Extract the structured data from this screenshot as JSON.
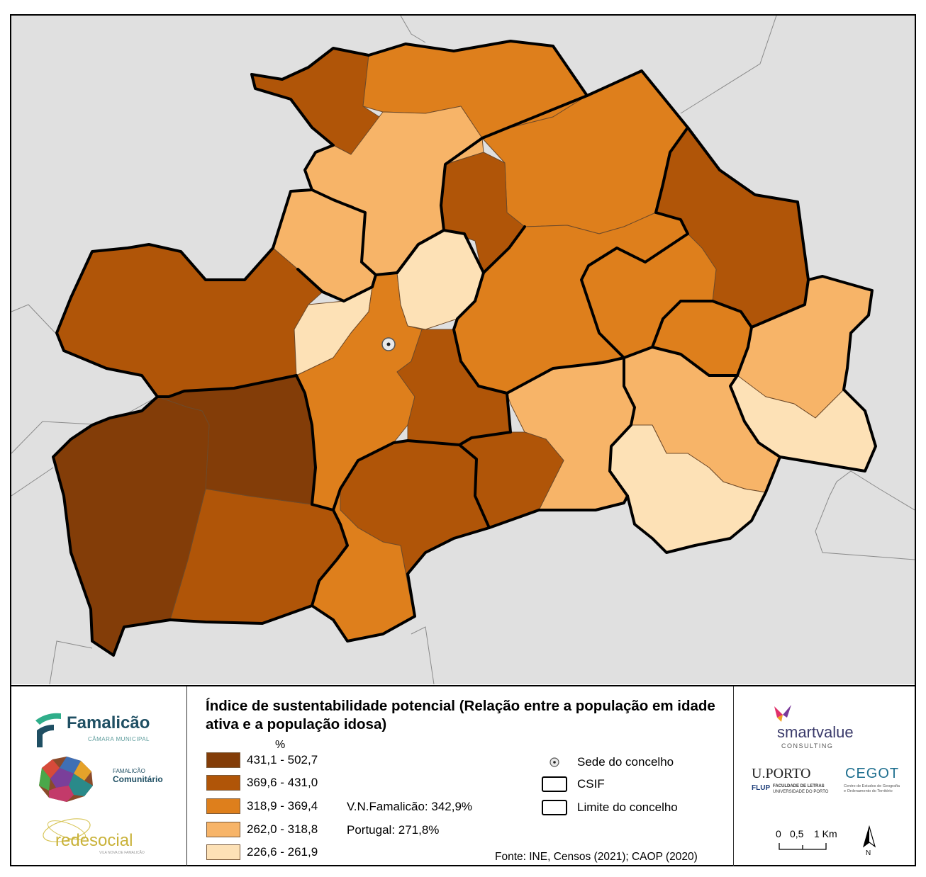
{
  "map": {
    "colors": {
      "background": "#e0e0e0",
      "class1": "#833d08",
      "class2": "#b05508",
      "class3": "#de7f1c",
      "class4": "#f7b468",
      "class5": "#fde1b6"
    }
  },
  "legend": {
    "title": "Índice de sustentabilidade potencial (Relação entre a população em idade ativa e a população idosa)",
    "unit": "%",
    "classes": [
      {
        "label": "431,1 - 502,7",
        "color": "#833d08"
      },
      {
        "label": "369,6 - 431,0",
        "color": "#b05508"
      },
      {
        "label": "318,9 - 369,4",
        "color": "#de7f1c"
      },
      {
        "label": "262,0 - 318,8",
        "color": "#f7b468"
      },
      {
        "label": "226,6 - 261,9",
        "color": "#fde1b6"
      }
    ],
    "stats": {
      "vnf": "V.N.Famalicão: 342,9%",
      "portugal": "Portugal: 271,8%"
    },
    "symbols": {
      "seat": "Sede do concelho",
      "csif": "CSIF",
      "limit": "Limite do concelho"
    },
    "source": "Fonte: INE, Censos (2021); CAOP (2020)"
  },
  "scale": {
    "labels": [
      "0",
      "0,5",
      "1 Km"
    ]
  },
  "north": {
    "label": "N",
    "icon": "north-arrow-icon"
  },
  "logos": {
    "famalicao": {
      "name": "Famalicão",
      "sub": "CÂMARA MUNICIPAL"
    },
    "comunitario": {
      "line1": "FAMALICÃO",
      "line2": "Comunitário"
    },
    "redesocial": {
      "name": "redesocial",
      "sub": "VILA NOVA DE FAMALICÃO"
    },
    "smartvalue": {
      "name": "smartvalue",
      "sub": "CONSULTING"
    },
    "uporto": {
      "name": "U.PORTO",
      "flup": "FLUP",
      "fac1": "FACULDADE DE LETRAS",
      "fac2": "UNIVERSIDADE DO PORTO"
    },
    "cegot": {
      "name": "CEGOT",
      "sub1": "Centro de Estudos de Geografia",
      "sub2": "e Ordenamento do Território"
    }
  }
}
